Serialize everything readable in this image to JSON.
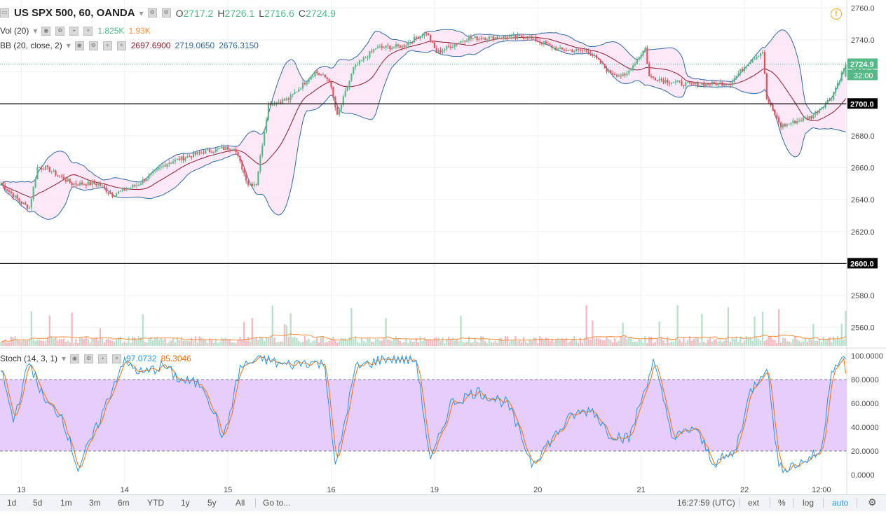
{
  "header": {
    "symbol": "US SPX 500, 60, OANDA",
    "open_label": "O",
    "open": "2717.2",
    "high_label": "H",
    "high": "2726.1",
    "low_label": "L",
    "low": "2716.6",
    "close_label": "C",
    "close": "2724.9",
    "vol_label": "Vol (20)",
    "vol_value": "1.825K",
    "vol_ma": "1.93K",
    "bb_label": "BB (20, close, 2)",
    "bb_basis": "2697.6900",
    "bb_upper": "2719.0650",
    "bb_lower": "2676.3150",
    "stoch_label": "Stoch (14, 3, 1)",
    "stoch_k": "97.0732",
    "stoch_d": "85.3046"
  },
  "price_axis": {
    "ticks": [
      "2760.0",
      "2740.0",
      "2720.0",
      "2700.0",
      "2680.0",
      "2660.0",
      "2640.0",
      "2620.0",
      "2600.0",
      "2580.0",
      "2560.0"
    ],
    "last_price_label": "2724.9",
    "countdown_label": "32:00",
    "level_2700": "2700.0",
    "level_2600": "2600.0"
  },
  "stoch_axis": {
    "ticks": [
      "100.0000",
      "80.0000",
      "60.0000",
      "40.0000",
      "20.0000",
      "0.0000"
    ]
  },
  "time_axis": {
    "ticks": [
      "13",
      "14",
      "15",
      "16",
      "19",
      "20",
      "21",
      "22",
      "12:00"
    ]
  },
  "toolbar": {
    "ranges": [
      "1d",
      "5d",
      "1m",
      "3m",
      "6m",
      "YTD",
      "1y",
      "5y",
      "All"
    ],
    "goto": "Go to...",
    "clock": "16:27:59 (UTC)",
    "ext": "ext",
    "percent": "%",
    "log": "log",
    "auto": "auto"
  },
  "colors": {
    "up": "#53b987",
    "down": "#eb4d5c",
    "bb_band": "#2f6aa3",
    "bb_basis": "#8b1a2e",
    "bb_fill": "#fce4f5",
    "stoch_k": "#2196f3",
    "stoch_d": "#ff6d00",
    "stoch_zone": "#e6cdfb",
    "vol_up": "#b8e0cc",
    "vol_down": "#f6b8c1",
    "vol_ma": "#ff8c3a",
    "accent": "#2196f3"
  },
  "chart_data": {
    "type": "candlestick",
    "symbol": "US SPX 500",
    "interval": "60",
    "source": "OANDA",
    "ylim": [
      2548,
      2765
    ],
    "horizontal_levels": [
      2700,
      2600
    ],
    "last": {
      "open": 2717.2,
      "high": 2726.1,
      "low": 2716.6,
      "close": 2724.9
    },
    "bollinger": {
      "length": 20,
      "source": "close",
      "mult": 2,
      "basis": 2697.69,
      "upper": 2719.065,
      "lower": 2676.315
    },
    "volume": {
      "ma_length": 20,
      "last": "1.825K",
      "ma": "1.93K"
    },
    "stochastic": {
      "k_length": 14,
      "k_smooth": 3,
      "d_smooth": 1,
      "k": 97.0732,
      "d": 85.3046,
      "bands": [
        80,
        20
      ],
      "ylim": [
        0,
        100
      ]
    },
    "price_anchors": [
      [
        0,
        2650
      ],
      [
        10,
        2638
      ],
      [
        14,
        2635
      ],
      [
        18,
        2660
      ],
      [
        22,
        2660
      ],
      [
        35,
        2650
      ],
      [
        48,
        2650
      ],
      [
        55,
        2643
      ],
      [
        68,
        2650
      ],
      [
        82,
        2663
      ],
      [
        100,
        2670
      ],
      [
        115,
        2673
      ],
      [
        122,
        2650
      ],
      [
        126,
        2650
      ],
      [
        132,
        2700
      ],
      [
        142,
        2703
      ],
      [
        155,
        2720
      ],
      [
        162,
        2715
      ],
      [
        166,
        2692
      ],
      [
        174,
        2722
      ],
      [
        185,
        2735
      ],
      [
        198,
        2736
      ],
      [
        210,
        2745
      ],
      [
        215,
        2732
      ],
      [
        230,
        2741
      ],
      [
        260,
        2742
      ],
      [
        275,
        2734
      ],
      [
        290,
        2733
      ],
      [
        300,
        2720
      ],
      [
        308,
        2717
      ],
      [
        318,
        2735
      ],
      [
        320,
        2717
      ],
      [
        330,
        2714
      ],
      [
        340,
        2712
      ],
      [
        360,
        2713
      ],
      [
        368,
        2725
      ],
      [
        376,
        2733
      ],
      [
        378,
        2703
      ],
      [
        385,
        2686
      ],
      [
        400,
        2692
      ],
      [
        410,
        2704
      ],
      [
        417,
        2724.9
      ]
    ],
    "stoch_k_anchors": [
      [
        0,
        90
      ],
      [
        6,
        45
      ],
      [
        14,
        95
      ],
      [
        22,
        60
      ],
      [
        30,
        50
      ],
      [
        38,
        5
      ],
      [
        46,
        35
      ],
      [
        52,
        60
      ],
      [
        60,
        95
      ],
      [
        70,
        85
      ],
      [
        80,
        92
      ],
      [
        88,
        80
      ],
      [
        100,
        75
      ],
      [
        110,
        30
      ],
      [
        118,
        90
      ],
      [
        128,
        98
      ],
      [
        140,
        92
      ],
      [
        152,
        95
      ],
      [
        160,
        92
      ],
      [
        165,
        5
      ],
      [
        175,
        90
      ],
      [
        190,
        98
      ],
      [
        205,
        96
      ],
      [
        212,
        10
      ],
      [
        222,
        60
      ],
      [
        235,
        70
      ],
      [
        250,
        60
      ],
      [
        262,
        10
      ],
      [
        272,
        30
      ],
      [
        282,
        50
      ],
      [
        292,
        55
      ],
      [
        300,
        35
      ],
      [
        310,
        30
      ],
      [
        322,
        95
      ],
      [
        332,
        30
      ],
      [
        342,
        40
      ],
      [
        352,
        10
      ],
      [
        362,
        18
      ],
      [
        370,
        70
      ],
      [
        378,
        92
      ],
      [
        384,
        5
      ],
      [
        395,
        10
      ],
      [
        405,
        20
      ],
      [
        410,
        90
      ],
      [
        417,
        97
      ]
    ]
  }
}
